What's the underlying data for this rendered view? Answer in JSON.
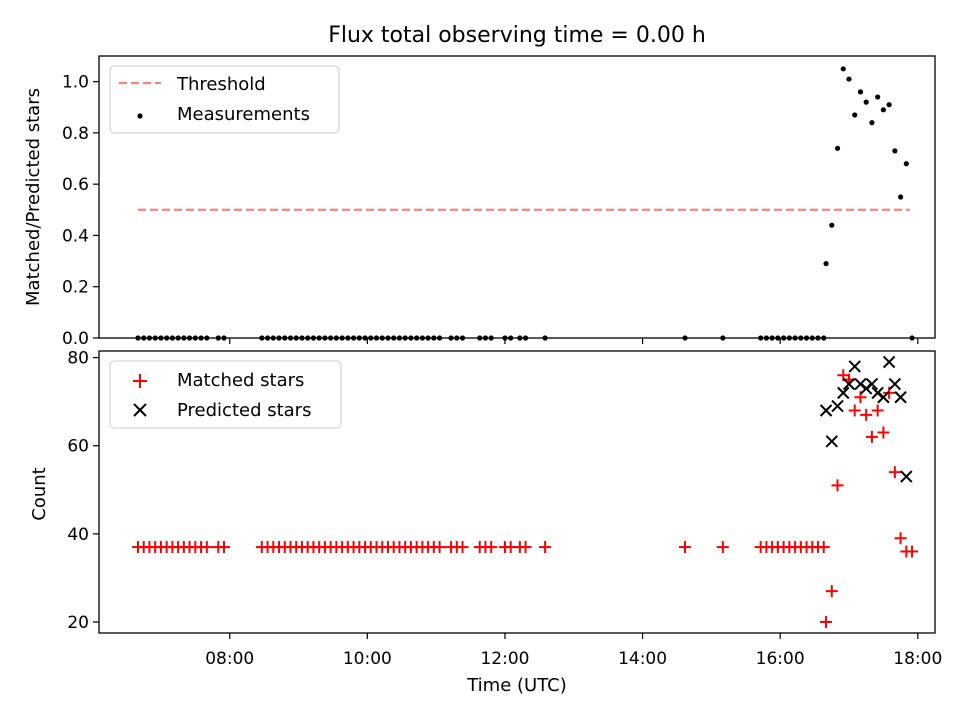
{
  "chart_data": [
    {
      "type": "scatter",
      "title": "Flux total observing time = 0.00 h",
      "xlabel": "",
      "ylabel": "Matched/Predicted stars",
      "xlim": [
        "06:06",
        "18:15"
      ],
      "ylim": [
        0,
        1.1
      ],
      "yticks": [
        0.0,
        0.2,
        0.4,
        0.6,
        0.8,
        1.0
      ],
      "ytick_labels": [
        "0.0",
        "0.2",
        "0.4",
        "0.6",
        "0.8",
        "1.0"
      ],
      "xticks": [
        "08:00",
        "10:00",
        "12:00",
        "14:00",
        "16:00",
        "18:00"
      ],
      "legend_position": "top-left",
      "series": [
        {
          "name": "Threshold",
          "kind": "dashed-line",
          "color": "#ff7f7f",
          "points": [
            [
              "06:40",
              0.5
            ],
            [
              "17:53",
              0.5
            ]
          ]
        },
        {
          "name": "Measurements",
          "kind": "dot",
          "color": "#000000",
          "points": [
            [
              "06:40",
              0
            ],
            [
              "06:45",
              0
            ],
            [
              "06:50",
              0
            ],
            [
              "06:55",
              0
            ],
            [
              "07:00",
              0
            ],
            [
              "07:05",
              0
            ],
            [
              "07:10",
              0
            ],
            [
              "07:15",
              0
            ],
            [
              "07:20",
              0
            ],
            [
              "07:25",
              0
            ],
            [
              "07:30",
              0
            ],
            [
              "07:35",
              0
            ],
            [
              "07:40",
              0
            ],
            [
              "07:50",
              0
            ],
            [
              "07:55",
              0
            ],
            [
              "08:28",
              0
            ],
            [
              "08:33",
              0
            ],
            [
              "08:38",
              0
            ],
            [
              "08:43",
              0
            ],
            [
              "08:48",
              0
            ],
            [
              "08:53",
              0
            ],
            [
              "08:58",
              0
            ],
            [
              "09:03",
              0
            ],
            [
              "09:08",
              0
            ],
            [
              "09:13",
              0
            ],
            [
              "09:18",
              0
            ],
            [
              "09:23",
              0
            ],
            [
              "09:28",
              0
            ],
            [
              "09:33",
              0
            ],
            [
              "09:38",
              0
            ],
            [
              "09:43",
              0
            ],
            [
              "09:48",
              0
            ],
            [
              "09:53",
              0
            ],
            [
              "09:58",
              0
            ],
            [
              "10:03",
              0
            ],
            [
              "10:08",
              0
            ],
            [
              "10:13",
              0
            ],
            [
              "10:18",
              0
            ],
            [
              "10:23",
              0
            ],
            [
              "10:28",
              0
            ],
            [
              "10:33",
              0
            ],
            [
              "10:38",
              0
            ],
            [
              "10:43",
              0
            ],
            [
              "10:48",
              0
            ],
            [
              "10:53",
              0
            ],
            [
              "10:58",
              0
            ],
            [
              "11:03",
              0
            ],
            [
              "11:13",
              0
            ],
            [
              "11:18",
              0
            ],
            [
              "11:23",
              0
            ],
            [
              "11:38",
              0
            ],
            [
              "11:43",
              0
            ],
            [
              "11:48",
              0
            ],
            [
              "12:00",
              0
            ],
            [
              "12:05",
              0
            ],
            [
              "12:13",
              0
            ],
            [
              "12:18",
              0
            ],
            [
              "12:35",
              0
            ],
            [
              "14:37",
              0
            ],
            [
              "15:10",
              0
            ],
            [
              "15:43",
              0
            ],
            [
              "15:48",
              0
            ],
            [
              "15:53",
              0
            ],
            [
              "15:58",
              0
            ],
            [
              "16:03",
              0
            ],
            [
              "16:08",
              0
            ],
            [
              "16:13",
              0
            ],
            [
              "16:18",
              0
            ],
            [
              "16:23",
              0
            ],
            [
              "16:28",
              0
            ],
            [
              "16:33",
              0
            ],
            [
              "16:38",
              0
            ],
            [
              "16:40",
              0.29
            ],
            [
              "16:45",
              0.44
            ],
            [
              "16:50",
              0.74
            ],
            [
              "16:55",
              1.05
            ],
            [
              "17:00",
              1.01
            ],
            [
              "17:05",
              0.87
            ],
            [
              "17:10",
              0.96
            ],
            [
              "17:15",
              0.92
            ],
            [
              "17:20",
              0.84
            ],
            [
              "17:25",
              0.94
            ],
            [
              "17:30",
              0.89
            ],
            [
              "17:35",
              0.91
            ],
            [
              "17:40",
              0.73
            ],
            [
              "17:45",
              0.55
            ],
            [
              "17:50",
              0.68
            ],
            [
              "17:55",
              0
            ]
          ]
        }
      ]
    },
    {
      "type": "scatter",
      "title": "",
      "xlabel": "Time (UTC)",
      "ylabel": "Count",
      "xlim": [
        "06:06",
        "18:15"
      ],
      "ylim": [
        17.5,
        81.5
      ],
      "yticks": [
        20,
        40,
        60,
        80
      ],
      "ytick_labels": [
        "20",
        "40",
        "60",
        "80"
      ],
      "xticks": [
        "08:00",
        "10:00",
        "12:00",
        "14:00",
        "16:00",
        "18:00"
      ],
      "legend_position": "top-left",
      "series": [
        {
          "name": "Matched stars",
          "kind": "plus",
          "color": "#ff0000",
          "points": [
            [
              "06:40",
              37
            ],
            [
              "06:45",
              37
            ],
            [
              "06:50",
              37
            ],
            [
              "06:55",
              37
            ],
            [
              "07:00",
              37
            ],
            [
              "07:05",
              37
            ],
            [
              "07:10",
              37
            ],
            [
              "07:15",
              37
            ],
            [
              "07:20",
              37
            ],
            [
              "07:25",
              37
            ],
            [
              "07:30",
              37
            ],
            [
              "07:35",
              37
            ],
            [
              "07:40",
              37
            ],
            [
              "07:50",
              37
            ],
            [
              "07:55",
              37
            ],
            [
              "08:28",
              37
            ],
            [
              "08:33",
              37
            ],
            [
              "08:38",
              37
            ],
            [
              "08:43",
              37
            ],
            [
              "08:48",
              37
            ],
            [
              "08:53",
              37
            ],
            [
              "08:58",
              37
            ],
            [
              "09:03",
              37
            ],
            [
              "09:08",
              37
            ],
            [
              "09:13",
              37
            ],
            [
              "09:18",
              37
            ],
            [
              "09:23",
              37
            ],
            [
              "09:28",
              37
            ],
            [
              "09:33",
              37
            ],
            [
              "09:38",
              37
            ],
            [
              "09:43",
              37
            ],
            [
              "09:48",
              37
            ],
            [
              "09:53",
              37
            ],
            [
              "09:58",
              37
            ],
            [
              "10:03",
              37
            ],
            [
              "10:08",
              37
            ],
            [
              "10:13",
              37
            ],
            [
              "10:18",
              37
            ],
            [
              "10:23",
              37
            ],
            [
              "10:28",
              37
            ],
            [
              "10:33",
              37
            ],
            [
              "10:38",
              37
            ],
            [
              "10:43",
              37
            ],
            [
              "10:48",
              37
            ],
            [
              "10:53",
              37
            ],
            [
              "10:58",
              37
            ],
            [
              "11:03",
              37
            ],
            [
              "11:13",
              37
            ],
            [
              "11:18",
              37
            ],
            [
              "11:23",
              37
            ],
            [
              "11:38",
              37
            ],
            [
              "11:43",
              37
            ],
            [
              "11:48",
              37
            ],
            [
              "12:00",
              37
            ],
            [
              "12:05",
              37
            ],
            [
              "12:13",
              37
            ],
            [
              "12:18",
              37
            ],
            [
              "12:35",
              37
            ],
            [
              "14:37",
              37
            ],
            [
              "15:10",
              37
            ],
            [
              "15:43",
              37
            ],
            [
              "15:48",
              37
            ],
            [
              "15:53",
              37
            ],
            [
              "15:58",
              37
            ],
            [
              "16:03",
              37
            ],
            [
              "16:08",
              37
            ],
            [
              "16:13",
              37
            ],
            [
              "16:18",
              37
            ],
            [
              "16:23",
              37
            ],
            [
              "16:28",
              37
            ],
            [
              "16:33",
              37
            ],
            [
              "16:38",
              37
            ],
            [
              "16:40",
              20
            ],
            [
              "16:45",
              27
            ],
            [
              "16:50",
              51
            ],
            [
              "16:55",
              76
            ],
            [
              "17:00",
              75
            ],
            [
              "17:05",
              68
            ],
            [
              "17:10",
              71
            ],
            [
              "17:15",
              67
            ],
            [
              "17:20",
              62
            ],
            [
              "17:25",
              68
            ],
            [
              "17:30",
              63
            ],
            [
              "17:35",
              72
            ],
            [
              "17:40",
              54
            ],
            [
              "17:45",
              39
            ],
            [
              "17:50",
              36
            ],
            [
              "17:55",
              36
            ]
          ]
        },
        {
          "name": "Predicted stars",
          "kind": "x",
          "color": "#000000",
          "points": [
            [
              "16:40",
              68
            ],
            [
              "16:45",
              61
            ],
            [
              "16:50",
              69
            ],
            [
              "16:55",
              72
            ],
            [
              "17:00",
              74
            ],
            [
              "17:05",
              78
            ],
            [
              "17:10",
              74
            ],
            [
              "17:15",
              73
            ],
            [
              "17:20",
              74
            ],
            [
              "17:25",
              72
            ],
            [
              "17:30",
              71
            ],
            [
              "17:35",
              79
            ],
            [
              "17:40",
              74
            ],
            [
              "17:45",
              71
            ],
            [
              "17:50",
              53
            ]
          ]
        }
      ]
    }
  ]
}
